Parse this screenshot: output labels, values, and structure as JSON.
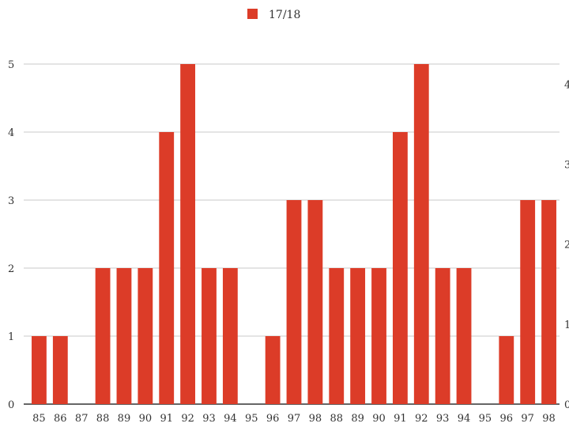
{
  "chart_data": {
    "type": "bar",
    "title": "",
    "xlabel": "",
    "ylabel": "",
    "categories": [
      "85",
      "86",
      "87",
      "88",
      "89",
      "90",
      "91",
      "92",
      "93",
      "94",
      "95",
      "96",
      "97",
      "98",
      "88",
      "89",
      "90",
      "91",
      "92",
      "93",
      "94",
      "95",
      "96",
      "97",
      "98"
    ],
    "series": [
      {
        "name": "17/18",
        "color": "#dc3c28",
        "values": [
          1,
          1,
          0,
          2,
          2,
          2,
          4,
          5,
          2,
          2,
          0,
          1,
          3,
          3,
          2,
          2,
          2,
          4,
          5,
          2,
          2,
          0,
          1,
          3,
          3
        ]
      }
    ],
    "ylim": [
      0,
      5
    ],
    "y_ticks": [
      "0",
      "1",
      "2",
      "3",
      "4",
      "5"
    ],
    "right_axis_ticks": [
      "0",
      "1",
      "2",
      "3",
      "4"
    ],
    "grid": true,
    "legend_position": "top-center"
  }
}
